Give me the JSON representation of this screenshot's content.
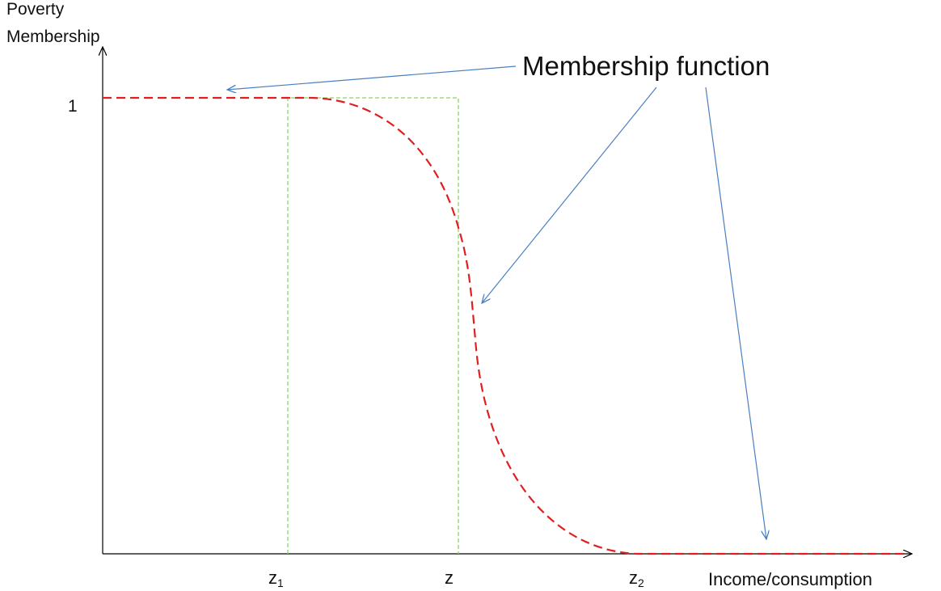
{
  "axes": {
    "y_label_line1": "Poverty",
    "y_label_line2": "Membership",
    "y_tick": "1",
    "x_label": "Income/consumption",
    "x_ticks": [
      {
        "base": "z",
        "sub": "1"
      },
      {
        "base": "z",
        "sub": ""
      },
      {
        "base": "z",
        "sub": "2"
      }
    ]
  },
  "annotation": {
    "text": "Membership function"
  },
  "colors": {
    "curve": "#e02020",
    "crisp": "#8fd16a",
    "arrow": "#4a7fc1",
    "axis": "#000000"
  }
}
